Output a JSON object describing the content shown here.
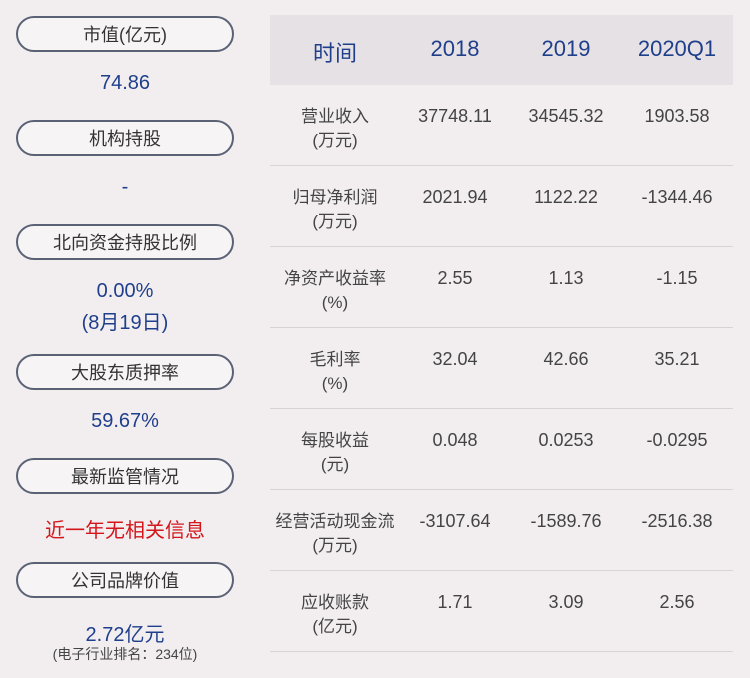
{
  "left": [
    {
      "label": "市值(亿元)",
      "value": "74.86"
    },
    {
      "label": "机构持股",
      "value": "-"
    },
    {
      "label": "北向资金持股比例",
      "value": "0.00%",
      "note": "(8月19日)"
    },
    {
      "label": "大股东质押率",
      "value": "59.67%"
    },
    {
      "label": "最新监管情况",
      "value": "近一年无相关信息"
    },
    {
      "label": "公司品牌价值",
      "value": "2.72亿元",
      "sub": "(电子行业排名：234位)"
    }
  ],
  "table": {
    "header": [
      "时间",
      "2018",
      "2019",
      "2020Q1"
    ],
    "rows": [
      {
        "label": [
          "营业收入",
          "(万元)"
        ],
        "values": [
          "37748.11",
          "34545.32",
          "1903.58"
        ]
      },
      {
        "label": [
          "归母净利润",
          "(万元)"
        ],
        "values": [
          "2021.94",
          "1122.22",
          "-1344.46"
        ]
      },
      {
        "label": [
          "净资产收益率",
          "(%)"
        ],
        "values": [
          "2.55",
          "1.13",
          "-1.15"
        ]
      },
      {
        "label": [
          "毛利率",
          "(%)"
        ],
        "values": [
          "32.04",
          "42.66",
          "35.21"
        ]
      },
      {
        "label": [
          "每股收益",
          "(元)"
        ],
        "values": [
          "0.048",
          "0.0253",
          "-0.0295"
        ]
      },
      {
        "label": [
          "经营活动现金流",
          "(万元)"
        ],
        "values": [
          "-3107.64",
          "-1589.76",
          "-2516.38"
        ]
      },
      {
        "label": [
          "应收账款",
          "(亿元)"
        ],
        "values": [
          "1.71",
          "3.09",
          "2.56"
        ]
      }
    ]
  }
}
